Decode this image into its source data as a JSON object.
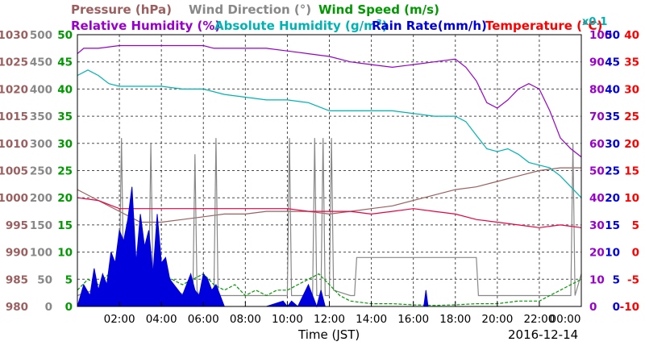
{
  "chart_data": {
    "type": "line",
    "date": "2016-12-14",
    "xlabel": "Time (JST)",
    "x_ticks": [
      "02:00",
      "04:00",
      "06:00",
      "08:00",
      "10:00",
      "12:00",
      "14:00",
      "16:00",
      "18:00",
      "20:00",
      "22:00",
      "00:00"
    ],
    "xlim": [
      0,
      24
    ],
    "legend": {
      "pressure": "Pressure (hPa)",
      "wind_direction": "Wind Direction (°)",
      "wind_speed": "Wind Speed (m/s)",
      "humidity": "Relative Humidity (%)",
      "abs_humidity_prefix": "Absolute Humidity (g/m",
      "abs_humidity_sup": "3",
      "abs_humidity_suffix": ")",
      "rain": "Rain Rate(mm/h)",
      "temperature": "Temperature (°C)",
      "scale_note": "x0.1"
    },
    "axes": {
      "pressure": {
        "range": [
          980,
          1030
        ],
        "ticks": [
          "1030",
          "1025",
          "1020",
          "1015",
          "1010",
          "1005",
          "1000",
          "995",
          "990",
          "985",
          "980"
        ],
        "color": "#9b5f5f"
      },
      "wind_direction": {
        "range": [
          0,
          500
        ],
        "ticks": [
          "500",
          "450",
          "400",
          "350",
          "300",
          "250",
          "200",
          "150",
          "100",
          "50",
          "0"
        ],
        "color": "#888888"
      },
      "wind_speed": {
        "range": [
          0,
          50
        ],
        "ticks": [
          "50",
          "45",
          "40",
          "35",
          "30",
          "25",
          "20",
          "15",
          "10",
          "5",
          "0"
        ],
        "color": "#009900"
      },
      "humidity": {
        "range": [
          0,
          100
        ],
        "ticks": [
          "100",
          "90",
          "80",
          "70",
          "60",
          "50",
          "40",
          "30",
          "20",
          "10",
          "0"
        ],
        "color": "#9900cc"
      },
      "rain": {
        "range": [
          0,
          50
        ],
        "ticks": [
          "50",
          "45",
          "40",
          "35",
          "30",
          "25",
          "20",
          "15",
          "10",
          "5",
          "0"
        ],
        "color": "#0000dd"
      },
      "temperature": {
        "range": [
          -10,
          40
        ],
        "ticks": [
          "40",
          "35",
          "30",
          "25",
          "20",
          "15",
          "10",
          "5",
          "0",
          "-5",
          "-10"
        ],
        "color": "#ff0000"
      }
    },
    "series": [
      {
        "name": "Pressure (hPa)",
        "axis": "pressure",
        "color": "#9b5f5f",
        "x": [
          0,
          1,
          2,
          3,
          4,
          5,
          6,
          7,
          8,
          9,
          10,
          11,
          12,
          13,
          14,
          15,
          16,
          17,
          18,
          19,
          20,
          21,
          22,
          23,
          24
        ],
        "y": [
          1001.5,
          999.5,
          997.5,
          995.5,
          995.5,
          996,
          996.5,
          997,
          997,
          997.5,
          997.5,
          997.5,
          997,
          997.5,
          998,
          998.5,
          999.5,
          1000.5,
          1001.5,
          1002,
          1003,
          1004,
          1005,
          1005.5,
          1005.5
        ]
      },
      {
        "name": "Wind Direction (°)",
        "axis": "wind_direction",
        "color": "#888888",
        "x": [
          0,
          1.5,
          2.0,
          2.1,
          2.2,
          2.5,
          3.0,
          3.4,
          3.5,
          3.6,
          4,
          5.5,
          5.6,
          5.7,
          5.8,
          6,
          6.5,
          6.6,
          6.7,
          7,
          9,
          10.0,
          10.1,
          10.2,
          10.5,
          11.2,
          11.3,
          11.4,
          11.6,
          11.7,
          11.8,
          12.0,
          12.1,
          12.2,
          13,
          13.2,
          13.3,
          14,
          16,
          18,
          19.0,
          19.1,
          20,
          21,
          22,
          23.5,
          23.6,
          23.7,
          24
        ],
        "y": [
          20,
          40,
          60,
          310,
          40,
          20,
          90,
          30,
          300,
          40,
          30,
          20,
          280,
          30,
          20,
          20,
          20,
          310,
          20,
          20,
          20,
          20,
          310,
          20,
          20,
          20,
          310,
          20,
          20,
          310,
          20,
          20,
          310,
          30,
          20,
          20,
          90,
          90,
          90,
          90,
          90,
          20,
          20,
          20,
          20,
          20,
          300,
          20,
          60
        ]
      },
      {
        "name": "Wind Speed (m/s)",
        "axis": "wind_speed",
        "color": "#009900",
        "x": [
          0,
          0.5,
          1,
          1.5,
          2,
          2.5,
          3,
          3.5,
          4,
          4.5,
          5,
          5.5,
          6,
          6.5,
          7,
          7.5,
          8,
          8.5,
          9,
          9.5,
          10,
          10.5,
          11,
          11.5,
          12,
          12.5,
          13,
          14,
          15,
          16,
          17,
          18,
          19,
          20,
          21,
          22,
          22.5,
          23,
          23.5,
          24
        ],
        "y": [
          3,
          5,
          4,
          6,
          5,
          7,
          6,
          5,
          6,
          5,
          4,
          5,
          6,
          4,
          3,
          4,
          2,
          3,
          2,
          3,
          3,
          4,
          5,
          6,
          4,
          2,
          1,
          0.5,
          0.5,
          0.3,
          0.2,
          0.3,
          0.5,
          0.5,
          1,
          1,
          2,
          3,
          4,
          5
        ]
      },
      {
        "name": "Relative Humidity (%)",
        "axis": "humidity",
        "color": "#9900cc",
        "x": [
          0,
          0.3,
          1,
          2,
          3,
          4,
          5,
          6,
          6.5,
          7,
          8,
          9,
          10,
          11,
          12,
          13,
          14,
          15,
          16,
          17,
          18,
          18.5,
          19,
          19.5,
          20,
          20.5,
          21,
          21.5,
          22,
          22.5,
          23,
          23.5,
          24
        ],
        "y": [
          93,
          95,
          95,
          96,
          96,
          96,
          96,
          96,
          95,
          95,
          95,
          95,
          94,
          93,
          92,
          90,
          89,
          88,
          89,
          90,
          91,
          88,
          83,
          75,
          73,
          76,
          80,
          82,
          80,
          72,
          62,
          58,
          55
        ]
      },
      {
        "name": "Absolute Humidity (g/m3)",
        "axis": "humidity",
        "color": "#00b3b3",
        "x": [
          0,
          0.5,
          1,
          1.5,
          2,
          3,
          4,
          5,
          6,
          7,
          8,
          9,
          10,
          11,
          12,
          13,
          14,
          15,
          16,
          17,
          18,
          18.5,
          19,
          19.5,
          20,
          20.5,
          21,
          21.5,
          22,
          22.5,
          23,
          23.5,
          24
        ],
        "y": [
          85,
          87,
          85,
          82,
          81,
          81,
          81,
          80,
          80,
          78,
          77,
          76,
          76,
          75,
          72,
          72,
          72,
          72,
          71,
          70,
          70,
          68,
          63,
          58,
          57,
          58,
          56,
          53,
          52,
          51,
          48,
          44,
          40
        ]
      },
      {
        "name": "Temperature (°C)",
        "axis": "temperature",
        "color": "#ee0044",
        "x": [
          0,
          1,
          2,
          3,
          4,
          5,
          6,
          7,
          8,
          9,
          10,
          11,
          12,
          13,
          14,
          15,
          16,
          17,
          18,
          19,
          20,
          21,
          22,
          23,
          24
        ],
        "y": [
          10,
          9.5,
          8,
          8,
          8,
          8,
          8,
          8,
          8,
          8,
          8,
          7.5,
          7.5,
          7.5,
          7,
          7.5,
          8,
          7.5,
          7,
          6,
          5.5,
          5,
          4.5,
          5,
          4.5
        ]
      },
      {
        "name": "Rain Rate(mm/h)",
        "axis": "rain",
        "color": "#0000dd",
        "type": "area",
        "x": [
          0,
          0.3,
          0.6,
          0.8,
          1.0,
          1.2,
          1.4,
          1.6,
          1.8,
          2.0,
          2.2,
          2.4,
          2.6,
          2.8,
          3.0,
          3.2,
          3.4,
          3.6,
          3.8,
          4.0,
          4.2,
          4.4,
          4.6,
          5.0,
          5.4,
          5.6,
          5.8,
          6.0,
          6.2,
          6.4,
          6.6,
          7,
          9,
          9.8,
          10.0,
          10.2,
          10.5,
          11,
          11.4,
          11.6,
          11.8,
          12,
          13,
          14,
          16,
          16.5,
          16.6,
          16.7,
          17,
          24
        ],
        "y": [
          0,
          4,
          2,
          7,
          3,
          6,
          4,
          10,
          8,
          14,
          12,
          16,
          22,
          8,
          17,
          11,
          14,
          6,
          17,
          8,
          9,
          5,
          4,
          2,
          6,
          3,
          2,
          6,
          5,
          3,
          4,
          0,
          0,
          1,
          0,
          1,
          0,
          4,
          0,
          3,
          0,
          0,
          0,
          0,
          0,
          0,
          3,
          0,
          0,
          0
        ]
      }
    ]
  }
}
